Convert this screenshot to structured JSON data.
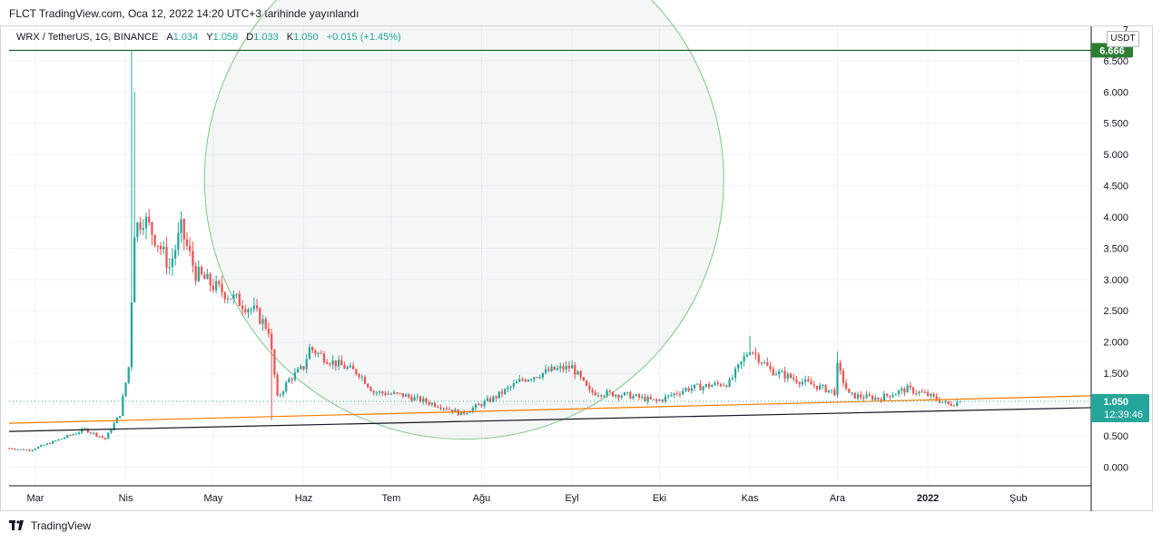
{
  "header": {
    "title": "FLCT TradingView.com, Oca 12, 2022 14:20 UTC+3 tarihinde yayınlandı"
  },
  "legend": {
    "pair": "WRX / TetherUS, 1G, BINANCE",
    "open_label": "A",
    "open": "1.034",
    "high_label": "Y",
    "high": "1.058",
    "low_label": "D",
    "low": "1.033",
    "close_label": "K",
    "close": "1.050",
    "change": "+0.015 (+1.45%)"
  },
  "footer": {
    "brand": "TradingView"
  },
  "price_axis": {
    "unit": "USDT"
  },
  "colors": {
    "up": "#26a69a",
    "down": "#ef5350",
    "support": "#131722",
    "trend": "#f57c00",
    "resistance": "#1b5e20",
    "circle": "#81c784",
    "badge_level": "#2e7d32",
    "badge_price": "#26a69a"
  },
  "chart_data": {
    "type": "candlestick",
    "symbol": "WRX / TetherUS",
    "interval": "1G",
    "exchange": "BINANCE",
    "ylim": [
      -0.3,
      7.05
    ],
    "y_ticks": [
      "0.000",
      "0.500",
      "1.000",
      "1.500",
      "2.000",
      "2.500",
      "3.000",
      "3.500",
      "4.000",
      "4.500",
      "5.000",
      "5.500",
      "6.000",
      "6.500",
      "7"
    ],
    "x_start": "2021-02-20",
    "x_end": "2022-02-26",
    "x_ticks": [
      {
        "date": "2021-03-01",
        "label": "Mar"
      },
      {
        "date": "2021-04-01",
        "label": "Nis"
      },
      {
        "date": "2021-05-01",
        "label": "May"
      },
      {
        "date": "2021-06-01",
        "label": "Haz"
      },
      {
        "date": "2021-07-01",
        "label": "Tem"
      },
      {
        "date": "2021-08-01",
        "label": "Ağu"
      },
      {
        "date": "2021-09-01",
        "label": "Eyl"
      },
      {
        "date": "2021-10-01",
        "label": "Eki"
      },
      {
        "date": "2021-11-01",
        "label": "Kas"
      },
      {
        "date": "2021-12-01",
        "label": "Ara"
      },
      {
        "date": "2022-01-01",
        "label": "2022"
      },
      {
        "date": "2022-02-01",
        "label": "Şub"
      }
    ],
    "price_path": [
      {
        "date": "2021-02-20",
        "price": 0.3
      },
      {
        "date": "2021-02-27",
        "price": 0.27
      },
      {
        "date": "2021-03-08",
        "price": 0.42
      },
      {
        "date": "2021-03-18",
        "price": 0.6
      },
      {
        "date": "2021-03-25",
        "price": 0.45
      },
      {
        "date": "2021-03-30",
        "price": 0.85
      },
      {
        "date": "2021-04-02",
        "price": 1.6
      },
      {
        "date": "2021-04-04",
        "price": 3.8
      },
      {
        "date": "2021-04-07",
        "price": 4.0
      },
      {
        "date": "2021-04-12",
        "price": 3.6
      },
      {
        "date": "2021-04-16",
        "price": 3.2
      },
      {
        "date": "2021-04-20",
        "price": 3.8
      },
      {
        "date": "2021-04-25",
        "price": 3.1
      },
      {
        "date": "2021-05-01",
        "price": 2.9
      },
      {
        "date": "2021-05-08",
        "price": 2.7
      },
      {
        "date": "2021-05-15",
        "price": 2.5
      },
      {
        "date": "2021-05-20",
        "price": 2.2
      },
      {
        "date": "2021-05-23",
        "price": 1.1
      },
      {
        "date": "2021-05-27",
        "price": 1.4
      },
      {
        "date": "2021-06-01",
        "price": 1.6
      },
      {
        "date": "2021-06-03",
        "price": 1.9
      },
      {
        "date": "2021-06-10",
        "price": 1.7
      },
      {
        "date": "2021-06-20",
        "price": 1.5
      },
      {
        "date": "2021-06-25",
        "price": 1.2
      },
      {
        "date": "2021-07-05",
        "price": 1.15
      },
      {
        "date": "2021-07-20",
        "price": 0.95
      },
      {
        "date": "2021-07-25",
        "price": 0.85
      },
      {
        "date": "2021-08-05",
        "price": 1.1
      },
      {
        "date": "2021-08-15",
        "price": 1.4
      },
      {
        "date": "2021-08-25",
        "price": 1.55
      },
      {
        "date": "2021-09-01",
        "price": 1.6
      },
      {
        "date": "2021-09-07",
        "price": 1.2
      },
      {
        "date": "2021-09-20",
        "price": 1.15
      },
      {
        "date": "2021-09-30",
        "price": 1.05
      },
      {
        "date": "2021-10-10",
        "price": 1.25
      },
      {
        "date": "2021-10-25",
        "price": 1.35
      },
      {
        "date": "2021-11-01",
        "price": 1.9
      },
      {
        "date": "2021-11-08",
        "price": 1.55
      },
      {
        "date": "2021-11-20",
        "price": 1.35
      },
      {
        "date": "2021-11-30",
        "price": 1.2
      },
      {
        "date": "2021-12-01",
        "price": 1.6
      },
      {
        "date": "2021-12-05",
        "price": 1.15
      },
      {
        "date": "2021-12-15",
        "price": 1.1
      },
      {
        "date": "2021-12-25",
        "price": 1.25
      },
      {
        "date": "2022-01-01",
        "price": 1.15
      },
      {
        "date": "2022-01-08",
        "price": 1.0
      },
      {
        "date": "2022-01-12",
        "price": 1.05
      }
    ],
    "extremes": [
      {
        "date": "2021-04-03",
        "price": 6.666
      },
      {
        "date": "2021-04-04",
        "price": 6.0
      },
      {
        "date": "2021-05-21",
        "price": 0.75
      },
      {
        "date": "2021-11-01",
        "price": 2.1
      },
      {
        "date": "2021-12-01",
        "price": 1.85
      }
    ],
    "lines": [
      {
        "name": "support",
        "from": {
          "date": "2021-02-20",
          "price": 0.57
        },
        "to": {
          "date": "2022-02-26",
          "price": 0.95
        }
      },
      {
        "name": "trend",
        "from": {
          "date": "2021-02-20",
          "price": 0.7
        },
        "to": {
          "date": "2022-02-26",
          "price": 1.14
        }
      },
      {
        "name": "resistance",
        "price": 6.666
      },
      {
        "name": "last",
        "price": 1.05
      }
    ],
    "circle": {
      "center": {
        "date": "2021-07-26",
        "price": 4.6
      },
      "radius_days": 89
    },
    "price_label": "1.050",
    "countdown": "12:39:46",
    "level_label": "6.666"
  }
}
